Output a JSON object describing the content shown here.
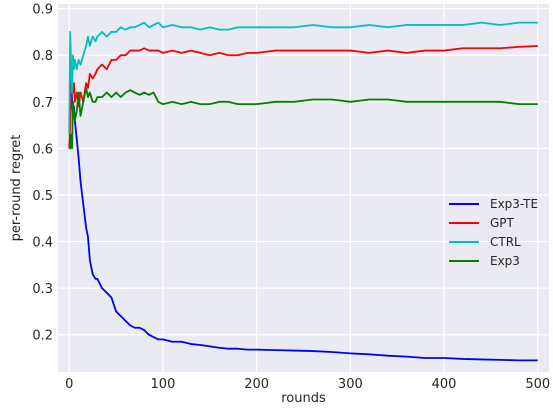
{
  "chart_data": {
    "type": "line",
    "title": "",
    "xlabel": "rounds",
    "ylabel": "per-round regret",
    "xlim": [
      -12,
      512
    ],
    "ylim": [
      0.12,
      0.91
    ],
    "xticks": [
      0,
      100,
      200,
      300,
      400,
      500
    ],
    "yticks": [
      0.2,
      0.3,
      0.4,
      0.5,
      0.6,
      0.7,
      0.8,
      0.9
    ],
    "grid": true,
    "legend_position": "center-right",
    "series": [
      {
        "name": "Exp3-TE",
        "color": "#0000ff",
        "x": [
          0,
          1,
          2,
          3,
          4,
          5,
          6,
          8,
          10,
          12,
          15,
          18,
          20,
          22,
          25,
          28,
          30,
          35,
          40,
          45,
          50,
          55,
          60,
          65,
          70,
          75,
          80,
          85,
          90,
          95,
          100,
          110,
          120,
          130,
          140,
          150,
          160,
          170,
          180,
          190,
          200,
          220,
          240,
          260,
          280,
          300,
          320,
          340,
          360,
          380,
          400,
          420,
          440,
          460,
          480,
          500
        ],
        "y": [
          0.8,
          0.8,
          0.75,
          0.7,
          0.67,
          0.69,
          0.66,
          0.62,
          0.58,
          0.53,
          0.48,
          0.43,
          0.41,
          0.36,
          0.33,
          0.32,
          0.32,
          0.3,
          0.29,
          0.28,
          0.25,
          0.24,
          0.23,
          0.22,
          0.215,
          0.215,
          0.21,
          0.2,
          0.195,
          0.19,
          0.19,
          0.185,
          0.185,
          0.18,
          0.178,
          0.175,
          0.172,
          0.17,
          0.17,
          0.168,
          0.168,
          0.167,
          0.166,
          0.165,
          0.163,
          0.16,
          0.158,
          0.155,
          0.153,
          0.15,
          0.15,
          0.148,
          0.147,
          0.146,
          0.145,
          0.145
        ]
      },
      {
        "name": "GPT",
        "color": "#ff0000",
        "x": [
          0,
          1,
          2,
          3,
          4,
          5,
          6,
          8,
          10,
          12,
          15,
          18,
          20,
          22,
          25,
          28,
          30,
          35,
          40,
          45,
          50,
          55,
          60,
          65,
          70,
          75,
          80,
          85,
          90,
          95,
          100,
          110,
          120,
          130,
          140,
          150,
          160,
          170,
          180,
          190,
          200,
          220,
          240,
          260,
          280,
          300,
          320,
          340,
          360,
          380,
          400,
          420,
          440,
          460,
          480,
          500
        ],
        "y": [
          0.6,
          0.65,
          0.72,
          0.74,
          0.72,
          0.74,
          0.7,
          0.72,
          0.69,
          0.72,
          0.7,
          0.74,
          0.73,
          0.76,
          0.75,
          0.76,
          0.77,
          0.78,
          0.77,
          0.79,
          0.79,
          0.8,
          0.8,
          0.81,
          0.81,
          0.81,
          0.815,
          0.81,
          0.81,
          0.81,
          0.805,
          0.81,
          0.805,
          0.81,
          0.805,
          0.8,
          0.805,
          0.8,
          0.8,
          0.805,
          0.805,
          0.81,
          0.81,
          0.81,
          0.81,
          0.81,
          0.805,
          0.81,
          0.805,
          0.81,
          0.81,
          0.815,
          0.815,
          0.815,
          0.818,
          0.82
        ]
      },
      {
        "name": "CTRL",
        "color": "#00bfbf",
        "x": [
          0,
          1,
          2,
          3,
          4,
          5,
          6,
          8,
          10,
          12,
          15,
          18,
          20,
          22,
          25,
          28,
          30,
          35,
          40,
          45,
          50,
          55,
          60,
          65,
          70,
          75,
          80,
          85,
          90,
          95,
          100,
          110,
          120,
          130,
          140,
          150,
          160,
          170,
          180,
          190,
          200,
          220,
          240,
          260,
          280,
          300,
          320,
          340,
          360,
          380,
          400,
          420,
          440,
          460,
          480,
          500
        ],
        "y": [
          0.63,
          0.85,
          0.78,
          0.72,
          0.8,
          0.77,
          0.79,
          0.77,
          0.79,
          0.78,
          0.8,
          0.82,
          0.84,
          0.82,
          0.84,
          0.83,
          0.84,
          0.85,
          0.84,
          0.85,
          0.85,
          0.86,
          0.855,
          0.86,
          0.86,
          0.865,
          0.87,
          0.86,
          0.865,
          0.87,
          0.86,
          0.865,
          0.86,
          0.86,
          0.855,
          0.86,
          0.855,
          0.855,
          0.86,
          0.86,
          0.86,
          0.86,
          0.86,
          0.865,
          0.86,
          0.86,
          0.865,
          0.86,
          0.865,
          0.865,
          0.865,
          0.865,
          0.87,
          0.865,
          0.87,
          0.87
        ]
      },
      {
        "name": "Exp3",
        "color": "#008000",
        "x": [
          0,
          1,
          2,
          3,
          4,
          5,
          6,
          8,
          10,
          12,
          15,
          18,
          20,
          22,
          25,
          28,
          30,
          35,
          40,
          45,
          50,
          55,
          60,
          65,
          70,
          75,
          80,
          85,
          90,
          95,
          100,
          110,
          120,
          130,
          140,
          150,
          160,
          170,
          180,
          190,
          200,
          220,
          240,
          260,
          280,
          300,
          320,
          340,
          360,
          380,
          400,
          420,
          440,
          460,
          480,
          500
        ],
        "y": [
          0.6,
          0.6,
          0.63,
          0.6,
          0.7,
          0.68,
          0.66,
          0.68,
          0.72,
          0.67,
          0.7,
          0.73,
          0.71,
          0.72,
          0.7,
          0.7,
          0.71,
          0.71,
          0.72,
          0.71,
          0.72,
          0.71,
          0.72,
          0.725,
          0.72,
          0.715,
          0.72,
          0.715,
          0.72,
          0.7,
          0.695,
          0.7,
          0.695,
          0.7,
          0.695,
          0.695,
          0.7,
          0.7,
          0.695,
          0.695,
          0.695,
          0.7,
          0.7,
          0.705,
          0.705,
          0.7,
          0.705,
          0.705,
          0.7,
          0.7,
          0.7,
          0.7,
          0.7,
          0.7,
          0.695,
          0.695
        ]
      }
    ]
  }
}
